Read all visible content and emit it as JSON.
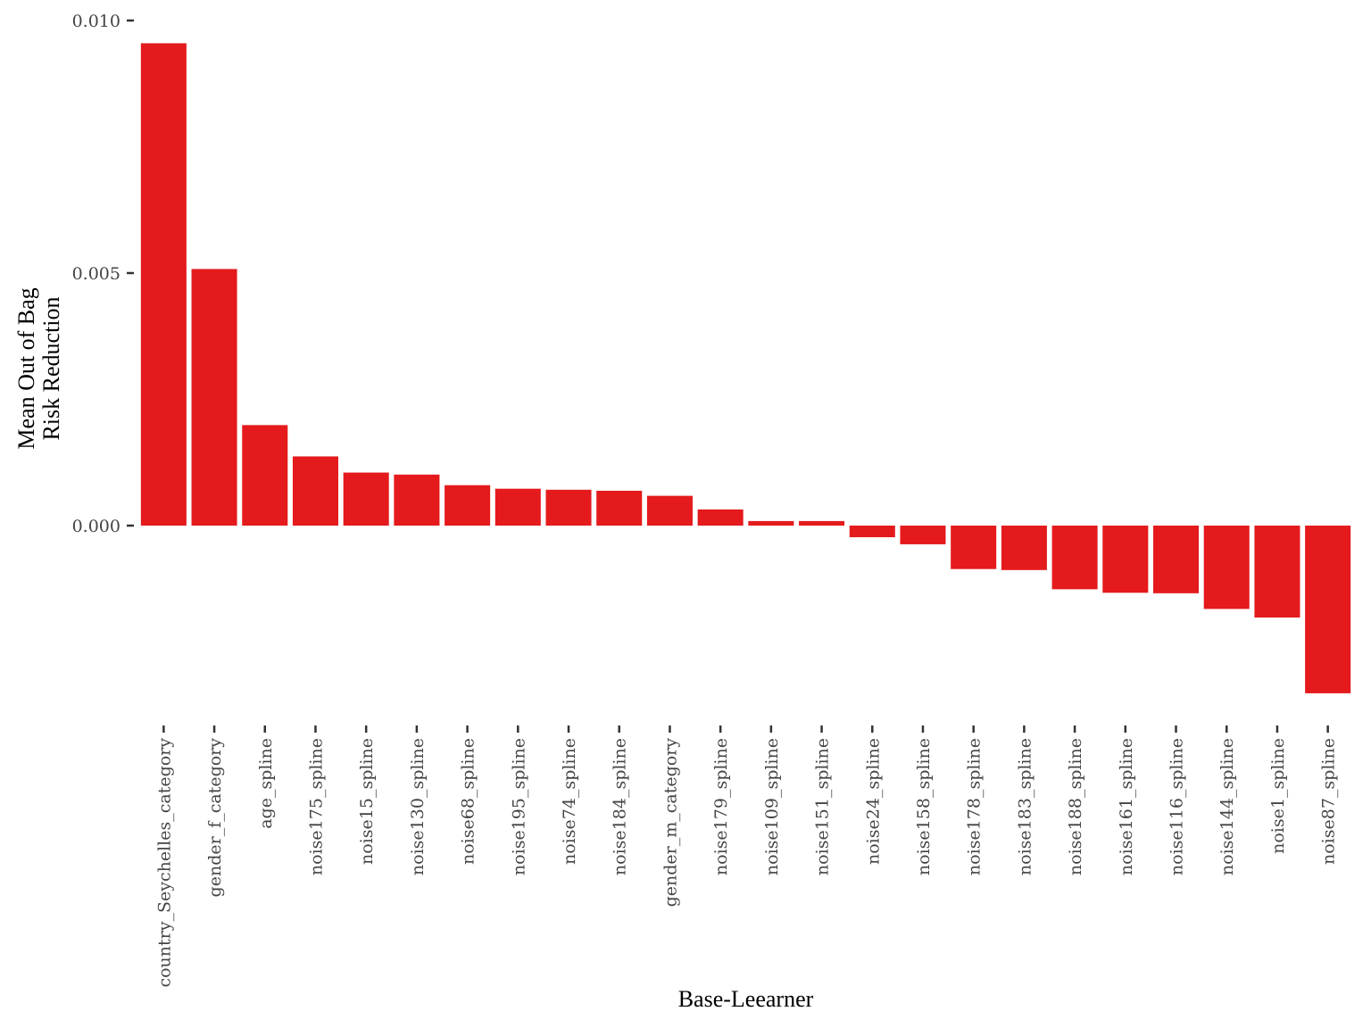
{
  "chart_data": {
    "type": "bar",
    "title": "",
    "xlabel": "Base-Leearner",
    "ylabel_lines": [
      "Mean Out of Bag",
      "Risk Reduction"
    ],
    "ylim": [
      -0.0035,
      0.01
    ],
    "yticks": [
      "0.000",
      "0.005",
      "0.010"
    ],
    "ytick_values": [
      0.0,
      0.005,
      0.01
    ],
    "bar_color": "#E41A1C",
    "grid": false,
    "categories": [
      "country_Seychelles_category",
      "gender_f_category",
      "age_spline",
      "noise175_spline",
      "noise15_spline",
      "noise130_spline",
      "noise68_spline",
      "noise195_spline",
      "noise74_spline",
      "noise184_spline",
      "gender_m_category",
      "noise179_spline",
      "noise109_spline",
      "noise151_spline",
      "noise24_spline",
      "noise158_spline",
      "noise178_spline",
      "noise183_spline",
      "noise188_spline",
      "noise161_spline",
      "noise116_spline",
      "noise144_spline",
      "noise1_spline",
      "noise87_spline"
    ],
    "values": [
      0.00955,
      0.00508,
      0.00199,
      0.00137,
      0.00105,
      0.00101,
      0.0008,
      0.00073,
      0.00071,
      0.00069,
      0.00059,
      0.00032,
      9e-05,
      9e-05,
      -0.00023,
      -0.00037,
      -0.00086,
      -0.00088,
      -0.00126,
      -0.00133,
      -0.00134,
      -0.00165,
      -0.00182,
      -0.00332
    ]
  }
}
